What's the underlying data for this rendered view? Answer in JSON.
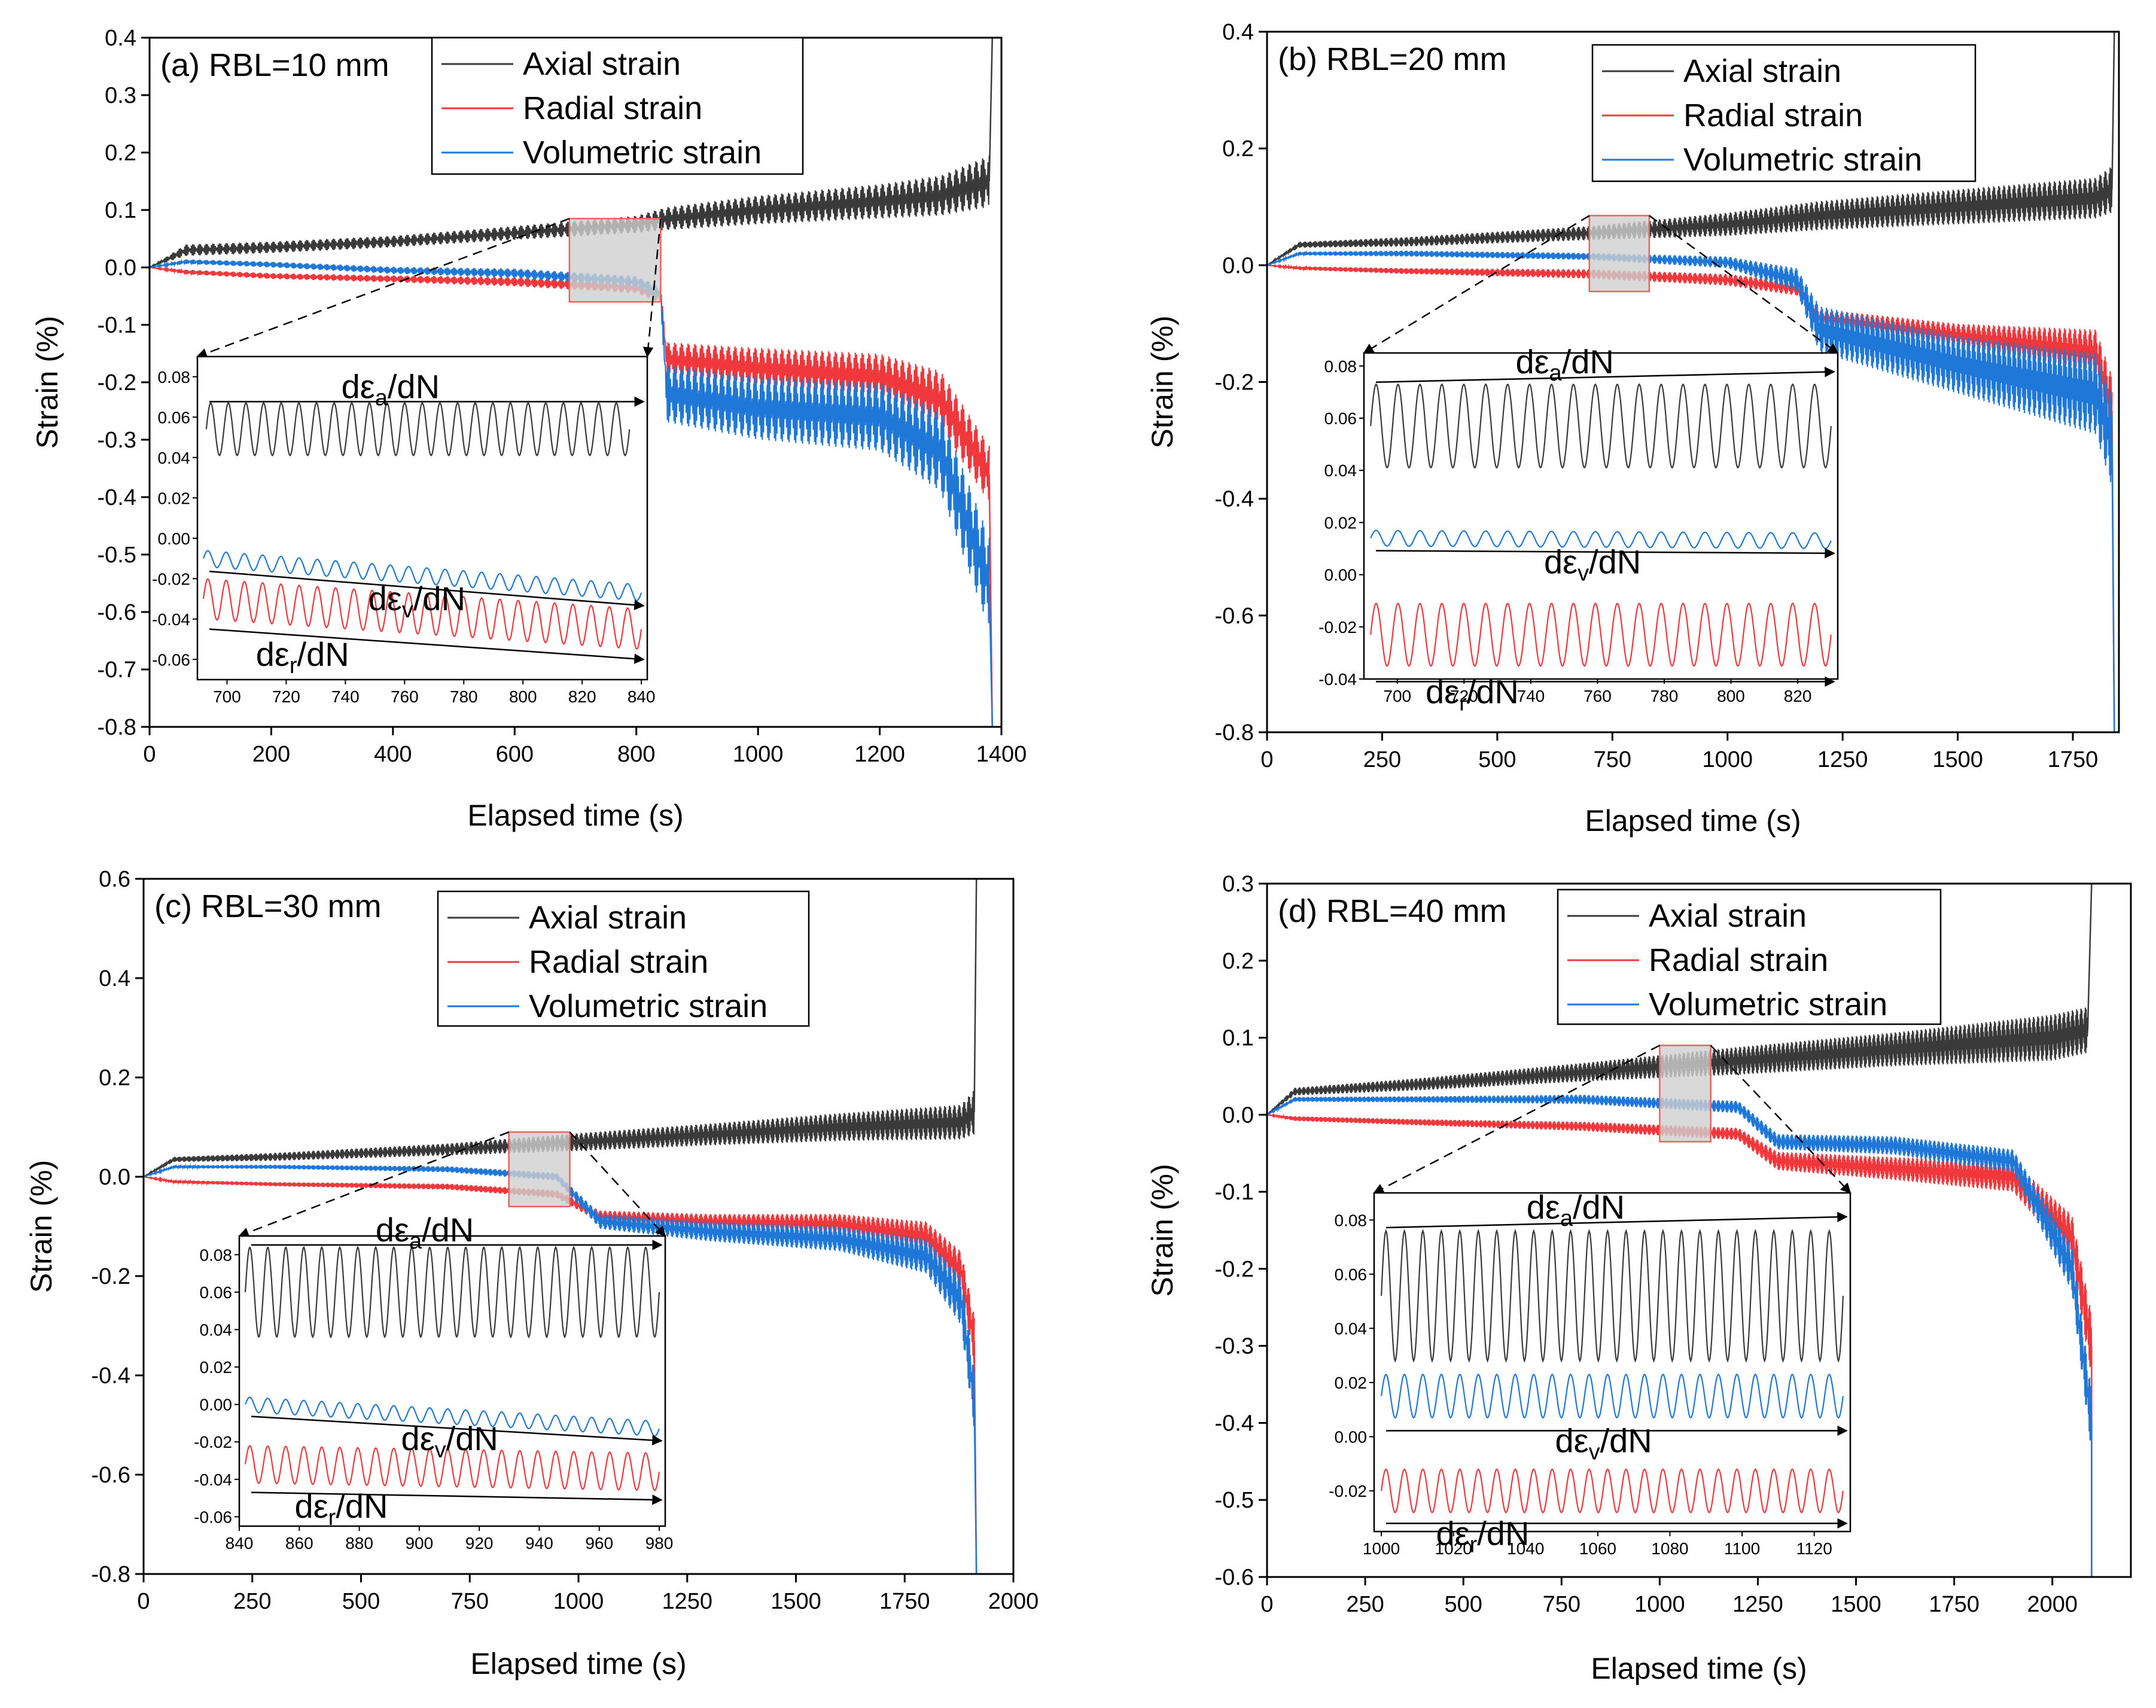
{
  "figure": {
    "legend_labels": [
      "Axial strain",
      "Radial strain",
      "Volumetric strain"
    ],
    "colors": {
      "axial": "#3a3a3a",
      "radial": "#f0383c",
      "volumetric": "#1f78d8",
      "zoom_box": "#f06060"
    }
  },
  "chart_data": [
    {
      "type": "line",
      "panel_label": "(a) RBL=10 mm",
      "xlabel": "Elapsed time (s)",
      "ylabel": "Strain (%)",
      "xlim": [
        0,
        1400
      ],
      "ylim": [
        -0.8,
        0.4
      ],
      "x_ticks": [
        0,
        200,
        400,
        600,
        800,
        1000,
        1200,
        1400
      ],
      "y_ticks": [
        -0.8,
        -0.7,
        -0.6,
        -0.5,
        -0.4,
        -0.3,
        -0.2,
        -0.1,
        0.0,
        0.1,
        0.2,
        0.3,
        0.4
      ],
      "x_tick_labels": [
        "0",
        "200",
        "400",
        "600",
        "800",
        "1000",
        "1200",
        "1400"
      ],
      "y_tick_labels": [
        "-0.8",
        "-0.7",
        "-0.6",
        "-0.5",
        "-0.4",
        "-0.3",
        "-0.2",
        "-0.1",
        "0.0",
        "0.1",
        "0.2",
        "0.3",
        "0.4"
      ],
      "failure_time": 1385,
      "zoom_window": {
        "x": [
          690,
          840
        ],
        "y": [
          -0.06,
          0.085
        ]
      },
      "series": [
        {
          "name": "Axial strain",
          "x": [
            0,
            60,
            200,
            400,
            600,
            800,
            850,
            1000,
            1200,
            1300,
            1380
          ],
          "mean": [
            0,
            0.03,
            0.035,
            0.045,
            0.06,
            0.075,
            0.085,
            0.1,
            0.115,
            0.125,
            0.15
          ],
          "amp": [
            0,
            0.01,
            0.01,
            0.01,
            0.012,
            0.015,
            0.02,
            0.025,
            0.03,
            0.035,
            0.045
          ]
        },
        {
          "name": "Radial strain",
          "x": [
            0,
            60,
            200,
            400,
            600,
            800,
            840,
            850,
            1000,
            1200,
            1300,
            1380
          ],
          "mean": [
            0,
            -0.008,
            -0.015,
            -0.02,
            -0.025,
            -0.035,
            -0.05,
            -0.16,
            -0.175,
            -0.19,
            -0.23,
            -0.36
          ],
          "amp": [
            0,
            0.004,
            0.005,
            0.006,
            0.008,
            0.01,
            0.012,
            0.03,
            0.035,
            0.04,
            0.05,
            0.05
          ]
        },
        {
          "name": "Volumetric strain",
          "x": [
            0,
            60,
            200,
            400,
            600,
            800,
            840,
            850,
            1000,
            1200,
            1300,
            1380
          ],
          "mean": [
            0,
            0.01,
            0.005,
            -0.005,
            -0.01,
            -0.025,
            -0.045,
            -0.22,
            -0.245,
            -0.26,
            -0.32,
            -0.55
          ],
          "amp": [
            0,
            0.004,
            0.005,
            0.006,
            0.008,
            0.01,
            0.012,
            0.05,
            0.055,
            0.06,
            0.07,
            0.08
          ]
        }
      ],
      "inset": {
        "xlim": [
          690,
          842
        ],
        "ylim": [
          -0.07,
          0.09
        ],
        "x_ticks": [
          700,
          720,
          740,
          760,
          780,
          800,
          820,
          840
        ],
        "y_ticks": [
          -0.06,
          -0.04,
          -0.02,
          0.0,
          0.02,
          0.04,
          0.06,
          0.08
        ],
        "x_tick_labels": [
          "700",
          "720",
          "740",
          "760",
          "780",
          "800",
          "820",
          "840"
        ],
        "y_tick_labels": [
          "-0.06",
          "-0.04",
          "-0.02",
          "0.00",
          "0.02",
          "0.04",
          "0.06",
          "0.08"
        ],
        "cycles": 24,
        "axial": {
          "x0": 693,
          "x1": 836,
          "mean0": 0.054,
          "mean1": 0.054,
          "amp": 0.013
        },
        "volumetric": {
          "x0": 692,
          "x1": 840,
          "mean0": -0.01,
          "mean1": -0.027,
          "amp": 0.004
        },
        "radial": {
          "x0": 692,
          "x1": 840,
          "mean0": -0.03,
          "mean1": -0.045,
          "amp": 0.01
        },
        "annotations": {
          "axial": {
            "label": "dε",
            "sub": "a",
            "tail": "/dN"
          },
          "volumetric": {
            "label": "dε",
            "sub": "v",
            "tail": "/dN"
          },
          "radial": {
            "label": "dε",
            "sub": "r",
            "tail": "/dN"
          }
        }
      }
    },
    {
      "type": "line",
      "panel_label": "(b) RBL=20 mm",
      "xlabel": "Elapsed time (s)",
      "ylabel": "Strain (%)",
      "xlim": [
        0,
        1850
      ],
      "ylim": [
        -0.8,
        0.4
      ],
      "x_ticks": [
        0,
        250,
        500,
        750,
        1000,
        1250,
        1500,
        1750
      ],
      "y_ticks": [
        -0.8,
        -0.6,
        -0.4,
        -0.2,
        0.0,
        0.2,
        0.4
      ],
      "x_tick_labels": [
        "0",
        "250",
        "500",
        "750",
        "1000",
        "1250",
        "1500",
        "1750"
      ],
      "y_tick_labels": [
        "-0.8",
        "-0.6",
        "-0.4",
        "-0.2",
        "0.0",
        "0.2",
        "0.4"
      ],
      "failure_time": 1840,
      "zoom_window": {
        "x": [
          700,
          830
        ],
        "y": [
          -0.045,
          0.085
        ]
      },
      "series": [
        {
          "name": "Axial strain",
          "x": [
            0,
            70,
            300,
            700,
            1000,
            1200,
            1500,
            1800,
            1835
          ],
          "mean": [
            0,
            0.035,
            0.04,
            0.055,
            0.07,
            0.085,
            0.1,
            0.115,
            0.13
          ],
          "amp": [
            0,
            0.005,
            0.008,
            0.012,
            0.02,
            0.025,
            0.03,
            0.035,
            0.04
          ]
        },
        {
          "name": "Radial strain",
          "x": [
            0,
            70,
            300,
            700,
            1000,
            1150,
            1200,
            1500,
            1800,
            1835
          ],
          "mean": [
            0,
            -0.005,
            -0.01,
            -0.015,
            -0.025,
            -0.04,
            -0.09,
            -0.12,
            -0.15,
            -0.25
          ],
          "amp": [
            0,
            0.003,
            0.005,
            0.008,
            0.01,
            0.012,
            0.015,
            0.02,
            0.04,
            0.06
          ]
        },
        {
          "name": "Volumetric strain",
          "x": [
            0,
            70,
            300,
            700,
            1000,
            1150,
            1200,
            1500,
            1800,
            1835
          ],
          "mean": [
            0,
            0.02,
            0.02,
            0.015,
            0.005,
            -0.025,
            -0.11,
            -0.17,
            -0.22,
            -0.3
          ],
          "amp": [
            0,
            0.003,
            0.005,
            0.006,
            0.01,
            0.02,
            0.04,
            0.05,
            0.07,
            0.08
          ]
        }
      ],
      "inset": {
        "xlim": [
          690,
          832
        ],
        "ylim": [
          -0.04,
          0.085
        ],
        "x_ticks": [
          700,
          720,
          740,
          760,
          780,
          800,
          820
        ],
        "y_ticks": [
          -0.04,
          -0.02,
          0.0,
          0.02,
          0.04,
          0.06,
          0.08
        ],
        "x_tick_labels": [
          "700",
          "720",
          "740",
          "760",
          "780",
          "800",
          "820"
        ],
        "y_tick_labels": [
          "-0.04",
          "-0.02",
          "0.00",
          "0.02",
          "0.04",
          "0.06",
          "0.08"
        ],
        "cycles": 21,
        "axial": {
          "x0": 692,
          "x1": 830,
          "mean0": 0.057,
          "mean1": 0.057,
          "amp": 0.016
        },
        "volumetric": {
          "x0": 692,
          "x1": 830,
          "mean0": 0.014,
          "mean1": 0.013,
          "amp": 0.003
        },
        "radial": {
          "x0": 692,
          "x1": 830,
          "mean0": -0.023,
          "mean1": -0.023,
          "amp": 0.012
        },
        "annotations": {
          "axial": {
            "label": "dε",
            "sub": "a",
            "tail": "/dN"
          },
          "volumetric": {
            "label": "dε",
            "sub": "v",
            "tail": "/dN"
          },
          "radial": {
            "label": "dε",
            "sub": "r",
            "tail": "/dN"
          }
        }
      }
    },
    {
      "type": "line",
      "panel_label": "(c) RBL=30 mm",
      "xlabel": "Elapsed time (s)",
      "ylabel": "Strain (%)",
      "xlim": [
        0,
        2000
      ],
      "ylim": [
        -0.8,
        0.6
      ],
      "x_ticks": [
        0,
        250,
        500,
        750,
        1000,
        1250,
        1500,
        1750,
        2000
      ],
      "y_ticks": [
        -0.8,
        -0.6,
        -0.4,
        -0.2,
        0.0,
        0.2,
        0.4,
        0.6
      ],
      "x_tick_labels": [
        "0",
        "250",
        "500",
        "750",
        "1000",
        "1250",
        "1500",
        "1750",
        "2000"
      ],
      "y_tick_labels": [
        "-0.8",
        "-0.6",
        "-0.4",
        "-0.2",
        "0.0",
        "0.2",
        "0.4",
        "0.6"
      ],
      "failure_time": 1915,
      "zoom_window": {
        "x": [
          840,
          980
        ],
        "y": [
          -0.06,
          0.09
        ]
      },
      "series": [
        {
          "name": "Axial strain",
          "x": [
            0,
            70,
            300,
            700,
            1000,
            1300,
            1600,
            1880,
            1910
          ],
          "mean": [
            0,
            0.035,
            0.04,
            0.055,
            0.07,
            0.085,
            0.1,
            0.11,
            0.13
          ],
          "amp": [
            0,
            0.005,
            0.008,
            0.012,
            0.018,
            0.022,
            0.028,
            0.035,
            0.045
          ]
        },
        {
          "name": "Radial strain",
          "x": [
            0,
            70,
            300,
            700,
            950,
            1050,
            1300,
            1600,
            1800,
            1880,
            1910
          ],
          "mean": [
            0,
            -0.01,
            -0.015,
            -0.02,
            -0.035,
            -0.08,
            -0.09,
            -0.095,
            -0.12,
            -0.19,
            -0.33
          ],
          "amp": [
            0,
            0.003,
            0.004,
            0.006,
            0.008,
            0.012,
            0.015,
            0.02,
            0.03,
            0.04,
            0.05
          ]
        },
        {
          "name": "Volumetric strain",
          "x": [
            0,
            70,
            300,
            700,
            950,
            1050,
            1300,
            1600,
            1800,
            1880,
            1910
          ],
          "mean": [
            0,
            0.02,
            0.02,
            0.015,
            0.0,
            -0.09,
            -0.11,
            -0.125,
            -0.16,
            -0.25,
            -0.45
          ],
          "amp": [
            0,
            0.003,
            0.004,
            0.006,
            0.008,
            0.015,
            0.02,
            0.025,
            0.035,
            0.05,
            0.06
          ]
        }
      ],
      "inset": {
        "xlim": [
          840,
          982
        ],
        "ylim": [
          -0.065,
          0.09
        ],
        "x_ticks": [
          840,
          860,
          880,
          900,
          920,
          940,
          960,
          980
        ],
        "y_ticks": [
          -0.06,
          -0.04,
          -0.02,
          0.0,
          0.02,
          0.04,
          0.06,
          0.08
        ],
        "x_tick_labels": [
          "840",
          "860",
          "880",
          "900",
          "920",
          "940",
          "960",
          "980"
        ],
        "y_tick_labels": [
          "-0.06",
          "-0.04",
          "-0.02",
          "0.00",
          "0.02",
          "0.04",
          "0.06",
          "0.08"
        ],
        "cycles": 23,
        "axial": {
          "x0": 842,
          "x1": 980,
          "mean0": 0.06,
          "mean1": 0.06,
          "amp": 0.024
        },
        "volumetric": {
          "x0": 842,
          "x1": 980,
          "mean0": 0.0,
          "mean1": -0.013,
          "amp": 0.004
        },
        "radial": {
          "x0": 842,
          "x1": 980,
          "mean0": -0.032,
          "mean1": -0.036,
          "amp": 0.01
        },
        "annotations": {
          "axial": {
            "label": "dε",
            "sub": "a",
            "tail": "/dN"
          },
          "volumetric": {
            "label": "dε",
            "sub": "v",
            "tail": "/dN"
          },
          "radial": {
            "label": "dε",
            "sub": "r",
            "tail": "/dN"
          }
        }
      }
    },
    {
      "type": "line",
      "panel_label": "(d) RBL=40 mm",
      "xlabel": "Elapsed time (s)",
      "ylabel": "Strain (%)",
      "xlim": [
        0,
        2200
      ],
      "ylim": [
        -0.6,
        0.3
      ],
      "x_ticks": [
        0,
        250,
        500,
        750,
        1000,
        1250,
        1500,
        1750,
        2000
      ],
      "y_ticks": [
        -0.6,
        -0.5,
        -0.4,
        -0.3,
        -0.2,
        -0.1,
        0.0,
        0.1,
        0.2,
        0.3
      ],
      "x_tick_labels": [
        "0",
        "250",
        "500",
        "750",
        "1000",
        "1250",
        "1500",
        "1750",
        "2000"
      ],
      "y_tick_labels": [
        "-0.6",
        "-0.5",
        "-0.4",
        "-0.3",
        "-0.2",
        "-0.1",
        "0.0",
        "0.1",
        "0.2",
        "0.3"
      ],
      "failure_time": 2100,
      "zoom_window": {
        "x": [
          1000,
          1130
        ],
        "y": [
          -0.035,
          0.09
        ]
      },
      "series": [
        {
          "name": "Axial strain",
          "x": [
            0,
            70,
            400,
            800,
            1200,
            1600,
            2000,
            2090
          ],
          "mean": [
            0,
            0.03,
            0.04,
            0.055,
            0.07,
            0.085,
            0.1,
            0.11
          ],
          "amp": [
            0,
            0.005,
            0.008,
            0.012,
            0.018,
            0.022,
            0.03,
            0.03
          ]
        },
        {
          "name": "Radial strain",
          "x": [
            0,
            70,
            400,
            800,
            1200,
            1300,
            1600,
            1900,
            2050,
            2100
          ],
          "mean": [
            0,
            -0.005,
            -0.01,
            -0.015,
            -0.025,
            -0.06,
            -0.07,
            -0.08,
            -0.16,
            -0.3
          ],
          "amp": [
            0,
            0.003,
            0.004,
            0.006,
            0.008,
            0.012,
            0.015,
            0.02,
            0.03,
            0.04
          ]
        },
        {
          "name": "Volumetric strain",
          "x": [
            0,
            70,
            400,
            800,
            1200,
            1300,
            1600,
            1900,
            2050,
            2100
          ],
          "mean": [
            0,
            0.02,
            0.02,
            0.02,
            0.01,
            -0.035,
            -0.04,
            -0.06,
            -0.2,
            -0.4
          ],
          "amp": [
            0,
            0.003,
            0.004,
            0.006,
            0.008,
            0.01,
            0.012,
            0.015,
            0.03,
            0.04
          ]
        }
      ],
      "inset": {
        "xlim": [
          998,
          1130
        ],
        "ylim": [
          -0.035,
          0.09
        ],
        "x_ticks": [
          1000,
          1020,
          1040,
          1060,
          1080,
          1100,
          1120
        ],
        "y_ticks": [
          -0.02,
          0.0,
          0.02,
          0.04,
          0.06,
          0.08
        ],
        "x_tick_labels": [
          "1000",
          "1020",
          "1040",
          "1060",
          "1080",
          "1100",
          "1120"
        ],
        "y_tick_labels": [
          "-0.02",
          "0.00",
          "0.02",
          "0.04",
          "0.06",
          "0.08"
        ],
        "cycles": 25,
        "axial": {
          "x0": 1000,
          "x1": 1128,
          "mean0": 0.052,
          "mean1": 0.052,
          "amp": 0.024
        },
        "volumetric": {
          "x0": 1000,
          "x1": 1128,
          "mean0": 0.015,
          "mean1": 0.015,
          "amp": 0.008
        },
        "radial": {
          "x0": 1000,
          "x1": 1128,
          "mean0": -0.02,
          "mean1": -0.02,
          "amp": 0.008
        },
        "annotations": {
          "axial": {
            "label": "dε",
            "sub": "a",
            "tail": "/dN"
          },
          "volumetric": {
            "label": "dε",
            "sub": "v",
            "tail": "/dN"
          },
          "radial": {
            "label": "dε",
            "sub": "r",
            "tail": "/dN"
          }
        }
      }
    }
  ]
}
